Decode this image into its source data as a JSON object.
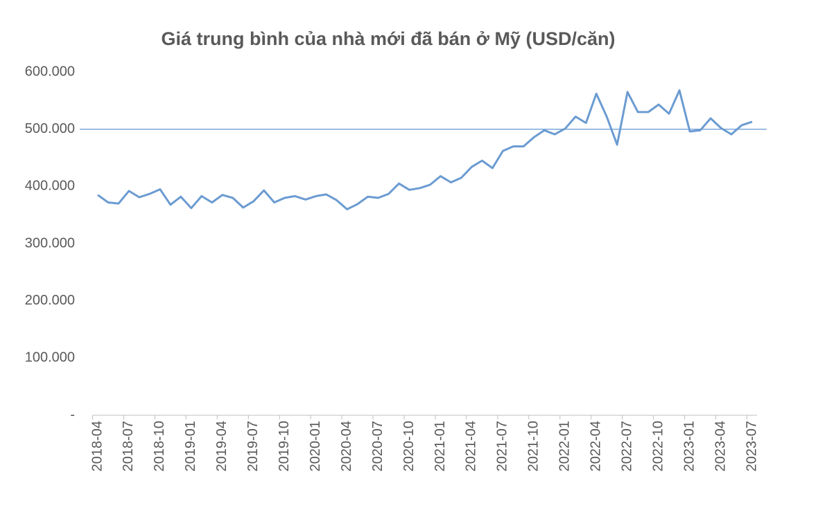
{
  "chart_data": {
    "type": "line",
    "title": "Giá trung bình của nhà mới đã bán ở Mỹ (USD/căn)",
    "categories": [
      "2018-04",
      null,
      null,
      "2018-07",
      null,
      null,
      "2018-10",
      null,
      null,
      "2019-01",
      null,
      null,
      "2019-04",
      null,
      null,
      "2019-07",
      null,
      null,
      "2019-10",
      null,
      null,
      "2020-01",
      null,
      null,
      "2020-04",
      null,
      null,
      "2020-07",
      null,
      null,
      "2020-10",
      null,
      null,
      "2021-01",
      null,
      null,
      "2021-04",
      null,
      null,
      "2021-07",
      null,
      null,
      "2021-10",
      null,
      null,
      "2022-01",
      null,
      null,
      "2022-04",
      null,
      null,
      "2022-07",
      null,
      null,
      "2022-10",
      null,
      null,
      "2023-01",
      null,
      null,
      "2023-04",
      null,
      null,
      "2023-07"
    ],
    "values": [
      385000,
      372000,
      370000,
      392000,
      381000,
      387000,
      395000,
      368000,
      382000,
      362000,
      383000,
      372000,
      385000,
      380000,
      363000,
      374000,
      393000,
      372000,
      380000,
      383000,
      377000,
      383000,
      386000,
      376000,
      360000,
      369000,
      382000,
      380000,
      387000,
      405000,
      394000,
      397000,
      403000,
      418000,
      407000,
      415000,
      434000,
      445000,
      432000,
      462000,
      470000,
      470000,
      486000,
      498000,
      491000,
      501000,
      522000,
      511000,
      562000,
      522000,
      473000,
      565000,
      530000,
      530000,
      543000,
      527000,
      568000,
      496000,
      498000,
      519000,
      502000,
      491000,
      507000,
      513000
    ],
    "color": "#6b9bd1",
    "ylim": [
      0,
      600000
    ],
    "yticks": [
      {
        "value": 0,
        "label": "-"
      },
      {
        "value": 100000,
        "label": "100.000"
      },
      {
        "value": 200000,
        "label": "200.000"
      },
      {
        "value": 300000,
        "label": "300.000"
      },
      {
        "value": 400000,
        "label": "400.000"
      },
      {
        "value": 500000,
        "label": "500.000"
      },
      {
        "value": 600000,
        "label": "600.000"
      }
    ],
    "reference_line": 500000
  }
}
